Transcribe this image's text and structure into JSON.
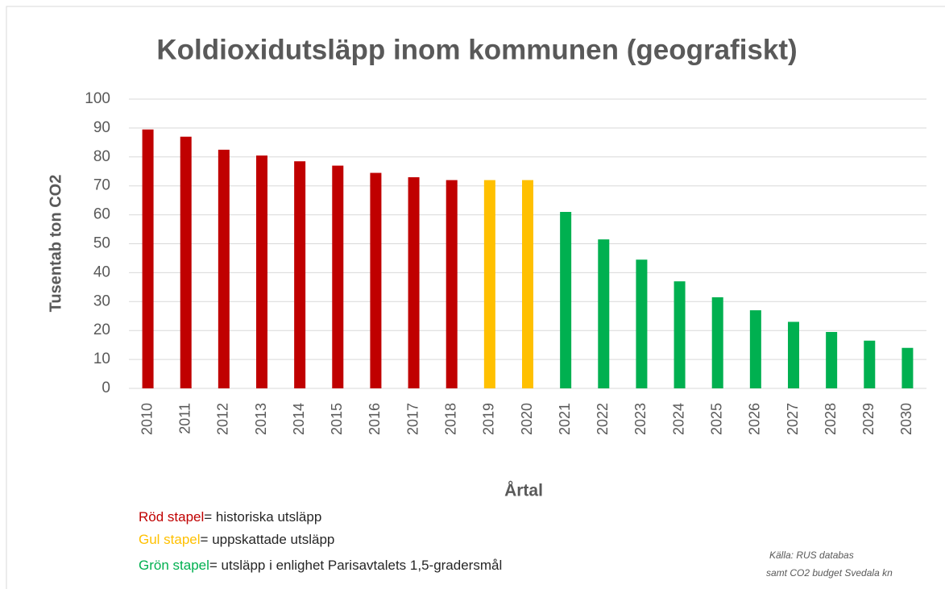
{
  "chart_data": {
    "type": "bar",
    "title": "Koldioxidutsläpp inom kommunen (geografiskt)",
    "y_label": "Tusentab ton CO2",
    "x_label": "Årtal",
    "categories": [
      "2010",
      "2011",
      "2012",
      "2013",
      "2014",
      "2015",
      "2016",
      "2017",
      "2018",
      "2019",
      "2020",
      "2021",
      "2022",
      "2023",
      "2024",
      "2025",
      "2026",
      "2027",
      "2028",
      "2029",
      "2030"
    ],
    "values": [
      89.5,
      87,
      82.5,
      80.5,
      78.5,
      77,
      74.5,
      73,
      72,
      72,
      72,
      61,
      51.5,
      44.5,
      37,
      31.5,
      27,
      23,
      19.5,
      16.5,
      14
    ],
    "colors": [
      "#c00000",
      "#c00000",
      "#c00000",
      "#c00000",
      "#c00000",
      "#c00000",
      "#c00000",
      "#c00000",
      "#c00000",
      "#ffc000",
      "#ffc000",
      "#00b050",
      "#00b050",
      "#00b050",
      "#00b050",
      "#00b050",
      "#00b050",
      "#00b050",
      "#00b050",
      "#00b050",
      "#00b050"
    ],
    "ylim": [
      0,
      100
    ],
    "yticks": [
      0,
      10,
      20,
      30,
      40,
      50,
      60,
      70,
      80,
      90,
      100
    ],
    "grid": true,
    "legend": [
      {
        "label": "Röd stapel",
        "text": "= historiska utsläpp",
        "color": "#c00000"
      },
      {
        "label": "Gul stapel",
        "text": "= uppskattade utsläpp",
        "color": "#ffc000"
      },
      {
        "label": "Grön stapel",
        "text": "= utsläpp i enlighet Parisavtalets 1,5-gradersmål",
        "color": "#00b050"
      }
    ],
    "source": [
      "Källa: RUS databas",
      "samt CO2 budget  Svedala kn"
    ]
  }
}
